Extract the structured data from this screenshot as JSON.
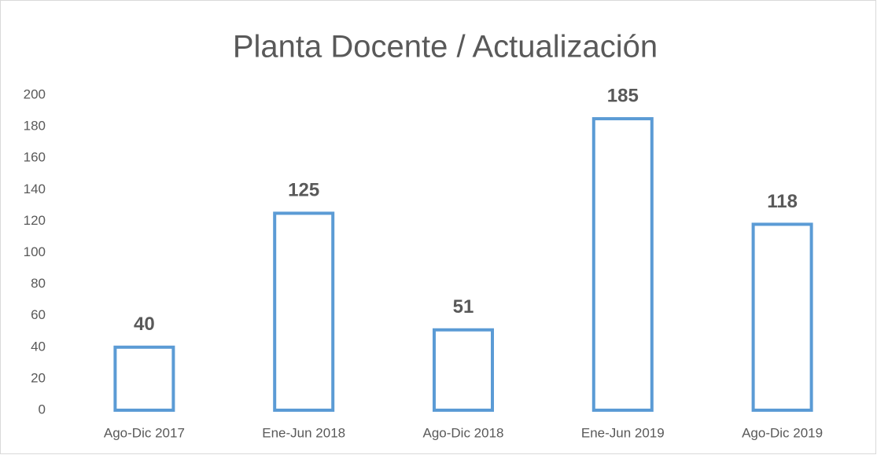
{
  "chart_data": {
    "type": "bar",
    "title": "Planta Docente / Actualización",
    "categories": [
      "Ago-Dic 2017",
      "Ene-Jun 2018",
      "Ago-Dic 2018",
      "Ene-Jun 2019",
      "Ago-Dic 2019"
    ],
    "values": [
      40,
      125,
      51,
      185,
      118
    ],
    "color": "#5b9bd5",
    "ylim": [
      0,
      200
    ],
    "yticks": [
      0,
      20,
      40,
      60,
      80,
      100,
      120,
      140,
      160,
      180,
      200
    ],
    "grid": false
  }
}
